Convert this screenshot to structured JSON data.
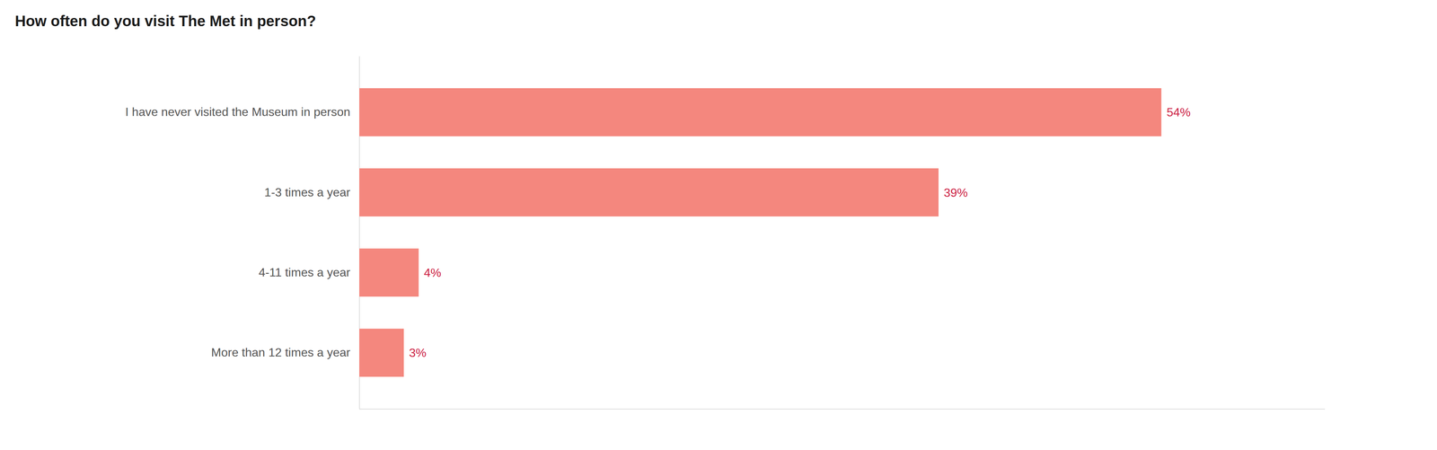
{
  "chart_data": {
    "type": "bar",
    "orientation": "horizontal",
    "title": "How often do you visit The Met in person?",
    "categories": [
      "I have never visited the Museum in person",
      "1-3 times a year",
      "4-11 times a year",
      "More than 12 times a year"
    ],
    "values": [
      54,
      39,
      4,
      3
    ],
    "value_labels": [
      "54%",
      "39%",
      "4%",
      "3%"
    ],
    "color": "#f4877e",
    "xlim": [
      0,
      65
    ],
    "data_labels": true,
    "tick_labels": "y",
    "grid": false
  }
}
